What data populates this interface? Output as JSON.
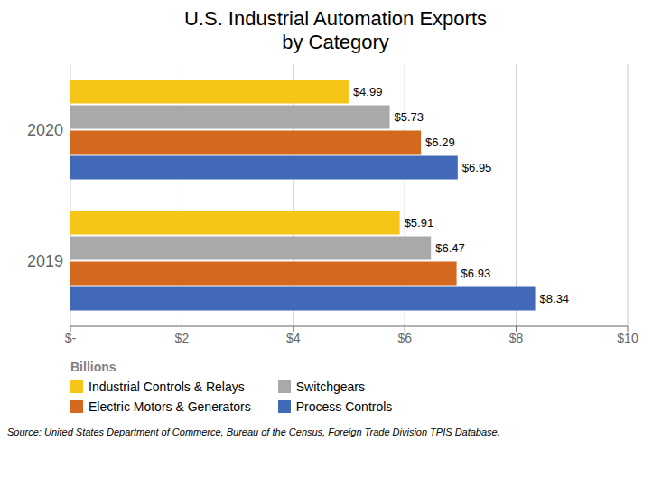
{
  "chart_data": {
    "type": "bar",
    "orientation": "horizontal",
    "title": "U.S. Industrial Automation Exports\nby Category",
    "x_label": "Billions",
    "categories": [
      "2020",
      "2019"
    ],
    "series": [
      {
        "name": "Industrial Controls & Relays",
        "color": "#F5C518",
        "values": [
          4.99,
          5.91
        ],
        "value_labels": [
          "$4.99",
          "$5.91"
        ]
      },
      {
        "name": "Switchgears",
        "color": "#A9A9A9",
        "values": [
          5.73,
          6.47
        ],
        "value_labels": [
          "$5.73",
          "$6.47"
        ]
      },
      {
        "name": "Electric Motors & Generators",
        "color": "#D2691E",
        "values": [
          6.29,
          6.93
        ],
        "value_labels": [
          "$6.29",
          "$6.93"
        ]
      },
      {
        "name": "Process Controls",
        "color": "#4169B8",
        "values": [
          6.95,
          8.34
        ],
        "value_labels": [
          "$6.95",
          "$8.34"
        ]
      }
    ],
    "xlim": [
      0,
      10
    ],
    "xticks": [
      {
        "value": 0,
        "label": "$-"
      },
      {
        "value": 2,
        "label": "$2"
      },
      {
        "value": 4,
        "label": "$4"
      },
      {
        "value": 6,
        "label": "$6"
      },
      {
        "value": 8,
        "label": "$8"
      },
      {
        "value": 10,
        "label": "$10"
      }
    ],
    "grid": true,
    "data_labels": true,
    "legend": "bottom",
    "annotations": [
      "Source: United States Department of Commerce, Bureau of the Census, Foreign Trade Division TPIS Database."
    ]
  }
}
